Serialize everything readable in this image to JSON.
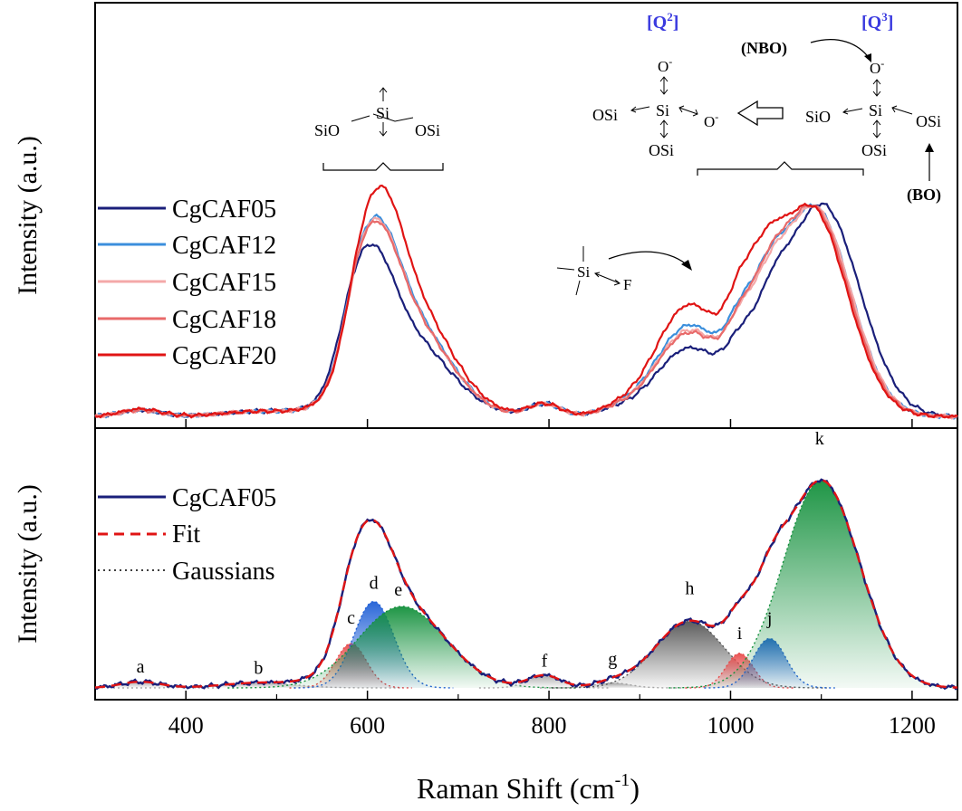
{
  "chart_data": [
    {
      "type": "line",
      "panel": "top",
      "ylabel": "Intensity (a.u.)",
      "xlabel": "",
      "xlim": [
        300,
        1250
      ],
      "ylim": [
        0,
        1.2
      ],
      "legend_position": "left",
      "series": [
        {
          "name": "CgCAF05",
          "color": "#1a1f7a",
          "peaks": [
            [
              350,
              0.025,
              22
            ],
            [
              480,
              0.02,
              40
            ],
            [
              582,
              0.18,
              17
            ],
            [
              607,
              0.35,
              22
            ],
            [
              638,
              0.33,
              48
            ],
            [
              795,
              0.05,
              18
            ],
            [
              870,
              0.02,
              20
            ],
            [
              955,
              0.27,
              38
            ],
            [
              1010,
              0.14,
              15
            ],
            [
              1043,
              0.2,
              18
            ],
            [
              1100,
              0.84,
              42
            ]
          ]
        },
        {
          "name": "CgCAF12",
          "color": "#3b8fdc",
          "peaks": [
            [
              350,
              0.025,
              22
            ],
            [
              480,
              0.02,
              40
            ],
            [
              587,
              0.2,
              17
            ],
            [
              612,
              0.38,
              22
            ],
            [
              640,
              0.41,
              46
            ],
            [
              795,
              0.05,
              18
            ],
            [
              870,
              0.02,
              20
            ],
            [
              955,
              0.36,
              38
            ],
            [
              1010,
              0.18,
              15
            ],
            [
              1040,
              0.24,
              18
            ],
            [
              1092,
              0.83,
              40
            ]
          ]
        },
        {
          "name": "CgCAF15",
          "color": "#f4a8a8",
          "peaks": [
            [
              350,
              0.025,
              22
            ],
            [
              480,
              0.02,
              40
            ],
            [
              587,
              0.2,
              17
            ],
            [
              612,
              0.38,
              22
            ],
            [
              640,
              0.4,
              46
            ],
            [
              795,
              0.05,
              18
            ],
            [
              870,
              0.02,
              20
            ],
            [
              955,
              0.34,
              38
            ],
            [
              1010,
              0.17,
              15
            ],
            [
              1040,
              0.22,
              18
            ],
            [
              1092,
              0.83,
              40
            ]
          ]
        },
        {
          "name": "CgCAF18",
          "color": "#e86a6a",
          "peaks": [
            [
              350,
              0.025,
              22
            ],
            [
              480,
              0.02,
              40
            ],
            [
              587,
              0.2,
              17
            ],
            [
              612,
              0.37,
              22
            ],
            [
              640,
              0.4,
              46
            ],
            [
              795,
              0.05,
              18
            ],
            [
              870,
              0.02,
              20
            ],
            [
              955,
              0.33,
              38
            ],
            [
              1010,
              0.17,
              15
            ],
            [
              1040,
              0.22,
              18
            ],
            [
              1090,
              0.83,
              40
            ]
          ]
        },
        {
          "name": "CgCAF20",
          "color": "#e01414",
          "peaks": [
            [
              350,
              0.03,
              22
            ],
            [
              480,
              0.02,
              40
            ],
            [
              590,
              0.22,
              17
            ],
            [
              616,
              0.44,
              22
            ],
            [
              642,
              0.47,
              46
            ],
            [
              795,
              0.05,
              18
            ],
            [
              870,
              0.02,
              20
            ],
            [
              955,
              0.44,
              38
            ],
            [
              1010,
              0.22,
              15
            ],
            [
              1038,
              0.28,
              18
            ],
            [
              1088,
              0.83,
              40
            ]
          ]
        }
      ],
      "annotations": {
        "q2_label": "[Q",
        "q3_label": "[Q",
        "q2_sup": "2",
        "q3_sup": "3",
        "bracket_close": "]",
        "nbo": "(NBO)",
        "bo": "(BO)",
        "si": "Si",
        "osi": "OSi",
        "sio": "SiO",
        "o_minus": "O",
        "minus": "-",
        "f": "F"
      }
    },
    {
      "type": "area",
      "panel": "bottom",
      "ylabel": "Intensity (a.u.)",
      "xlabel": "Raman Shift (cm",
      "xlabel_sup": "-1",
      "xlabel_close": ")",
      "xlim": [
        300,
        1250
      ],
      "ylim": [
        0,
        1.05
      ],
      "x_ticks": [
        "400",
        "600",
        "800",
        "1000",
        "1200"
      ],
      "legend": [
        "CgCAF05",
        "Fit",
        "Gaussians"
      ],
      "gaussians": [
        {
          "label": "a",
          "center": 350,
          "amp": 0.025,
          "width": 22,
          "color": "#aaaaaa"
        },
        {
          "label": "b",
          "center": 480,
          "amp": 0.02,
          "width": 40,
          "color": "#aaaaaa"
        },
        {
          "label": "c",
          "center": 582,
          "amp": 0.18,
          "width": 17,
          "color": "#e84a4a"
        },
        {
          "label": "d",
          "center": 607,
          "amp": 0.35,
          "width": 22,
          "color": "#1f5fd6"
        },
        {
          "label": "e",
          "center": 638,
          "amp": 0.33,
          "width": 48,
          "color": "#13903c"
        },
        {
          "label": "f",
          "center": 795,
          "amp": 0.05,
          "width": 18,
          "color": "#aaaaaa"
        },
        {
          "label": "g",
          "center": 870,
          "amp": 0.02,
          "width": 20,
          "color": "#aaaaaa"
        },
        {
          "label": "h",
          "center": 955,
          "amp": 0.27,
          "width": 38,
          "color": "#555555"
        },
        {
          "label": "i",
          "center": 1010,
          "amp": 0.14,
          "width": 15,
          "color": "#e84a4a"
        },
        {
          "label": "j",
          "center": 1043,
          "amp": 0.2,
          "width": 18,
          "color": "#1f5fd6"
        },
        {
          "label": "k",
          "center": 1100,
          "amp": 0.84,
          "width": 42,
          "color": "#13903c"
        }
      ]
    }
  ]
}
